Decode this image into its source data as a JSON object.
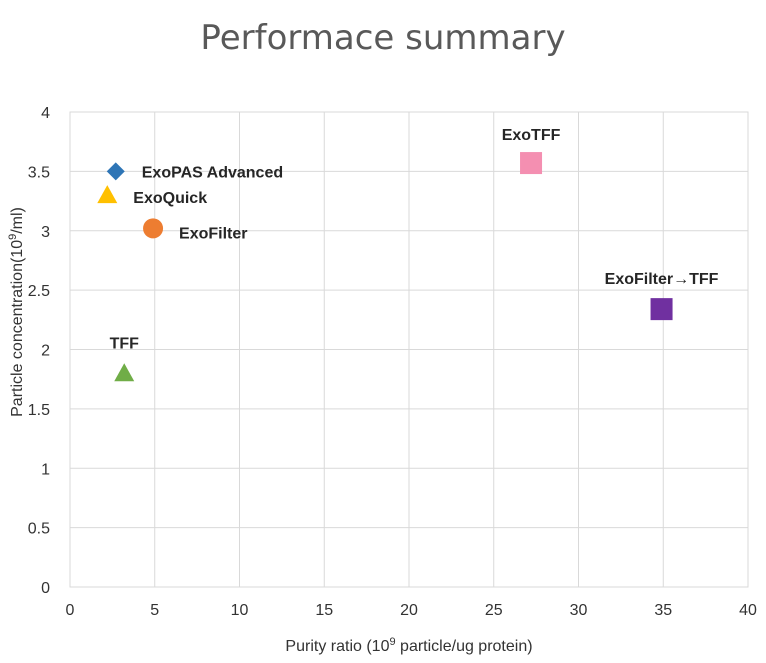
{
  "chart_data": {
    "type": "scatter",
    "title": "Performace summary",
    "xlabel": "Purity ratio (10^9 particle/ug protein)",
    "ylabel": "Particle concentration(10^9/ml)",
    "xlim": [
      0,
      40
    ],
    "ylim": [
      0,
      4
    ],
    "x_ticks": [
      "0",
      "5",
      "10",
      "15",
      "20",
      "25",
      "30",
      "35",
      "40"
    ],
    "y_ticks": [
      "0",
      "0.5",
      "1",
      "1.5",
      "2",
      "2.5",
      "3",
      "3.5",
      "4"
    ],
    "grid": true,
    "legend": false,
    "series": [
      {
        "name": "ExoPAS Advanced",
        "x": 2.7,
        "y": 3.5,
        "marker": "diamond",
        "color": "#2E75B6"
      },
      {
        "name": "ExoQuick",
        "x": 2.2,
        "y": 3.3,
        "marker": "triangle",
        "color": "#FFC000"
      },
      {
        "name": "ExoFilter",
        "x": 4.9,
        "y": 3.02,
        "marker": "circle",
        "color": "#ED7D31"
      },
      {
        "name": "TFF",
        "x": 3.2,
        "y": 1.8,
        "marker": "triangle",
        "color": "#70AD47"
      },
      {
        "name": "ExoTFF",
        "x": 27.2,
        "y": 3.57,
        "marker": "square",
        "color": "#F48FB1"
      },
      {
        "name": "ExoFilter→TFF",
        "x": 34.9,
        "y": 2.34,
        "marker": "square",
        "color": "#7030A0"
      }
    ]
  }
}
